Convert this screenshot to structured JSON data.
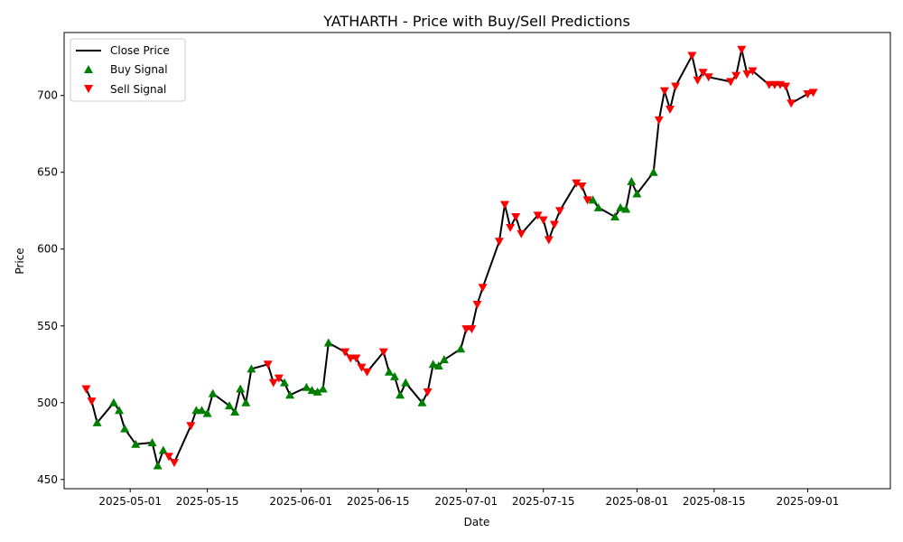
{
  "chart_data": {
    "type": "line",
    "title": "YATHARTH - Price with Buy/Sell Predictions",
    "xlabel": "Date",
    "ylabel": "Price",
    "xlim": [
      "2025-04-19",
      "2025-09-16"
    ],
    "ylim": [
      444,
      741
    ],
    "x_ticks": [
      "2025-05-01",
      "2025-05-15",
      "2025-06-01",
      "2025-06-15",
      "2025-07-01",
      "2025-07-15",
      "2025-08-01",
      "2025-08-15",
      "2025-09-01"
    ],
    "y_ticks": [
      450,
      500,
      550,
      600,
      650,
      700
    ],
    "legend_position": "upper left",
    "grid": false,
    "legend": [
      {
        "label": "Close Price",
        "marker": "line",
        "color": "#000000"
      },
      {
        "label": "Buy Signal",
        "marker": "triangle-up",
        "color": "#008000"
      },
      {
        "label": "Sell Signal",
        "marker": "triangle-down",
        "color": "#ff0000"
      }
    ],
    "series": [
      {
        "name": "Close Price",
        "color": "#000000",
        "points": [
          [
            "2025-04-23",
            509
          ],
          [
            "2025-04-24",
            501
          ],
          [
            "2025-04-25",
            487
          ],
          [
            "2025-04-28",
            500
          ],
          [
            "2025-04-29",
            495
          ],
          [
            "2025-04-30",
            483
          ],
          [
            "2025-05-02",
            473
          ],
          [
            "2025-05-05",
            474
          ],
          [
            "2025-05-06",
            459
          ],
          [
            "2025-05-07",
            469
          ],
          [
            "2025-05-08",
            465
          ],
          [
            "2025-05-09",
            461
          ],
          [
            "2025-05-12",
            485
          ],
          [
            "2025-05-13",
            495
          ],
          [
            "2025-05-14",
            495
          ],
          [
            "2025-05-15",
            493
          ],
          [
            "2025-05-16",
            506
          ],
          [
            "2025-05-19",
            498
          ],
          [
            "2025-05-20",
            494
          ],
          [
            "2025-05-21",
            509
          ],
          [
            "2025-05-22",
            500
          ],
          [
            "2025-05-23",
            522
          ],
          [
            "2025-05-26",
            525
          ],
          [
            "2025-05-27",
            513
          ],
          [
            "2025-05-28",
            516
          ],
          [
            "2025-05-29",
            513
          ],
          [
            "2025-05-30",
            505
          ],
          [
            "2025-06-02",
            510
          ],
          [
            "2025-06-03",
            508
          ],
          [
            "2025-06-04",
            507
          ],
          [
            "2025-06-05",
            509
          ],
          [
            "2025-06-06",
            539
          ],
          [
            "2025-06-09",
            533
          ],
          [
            "2025-06-10",
            529
          ],
          [
            "2025-06-11",
            529
          ],
          [
            "2025-06-12",
            523
          ],
          [
            "2025-06-13",
            520
          ],
          [
            "2025-06-16",
            533
          ],
          [
            "2025-06-17",
            520
          ],
          [
            "2025-06-18",
            517
          ],
          [
            "2025-06-19",
            505
          ],
          [
            "2025-06-20",
            513
          ],
          [
            "2025-06-23",
            500
          ],
          [
            "2025-06-24",
            507
          ],
          [
            "2025-06-25",
            525
          ],
          [
            "2025-06-26",
            524
          ],
          [
            "2025-06-27",
            528
          ],
          [
            "2025-06-30",
            535
          ],
          [
            "2025-07-01",
            548
          ],
          [
            "2025-07-02",
            548
          ],
          [
            "2025-07-03",
            564
          ],
          [
            "2025-07-04",
            575
          ],
          [
            "2025-07-07",
            605
          ],
          [
            "2025-07-08",
            629
          ],
          [
            "2025-07-09",
            614
          ],
          [
            "2025-07-10",
            621
          ],
          [
            "2025-07-11",
            610
          ],
          [
            "2025-07-14",
            622
          ],
          [
            "2025-07-15",
            619
          ],
          [
            "2025-07-16",
            606
          ],
          [
            "2025-07-17",
            616
          ],
          [
            "2025-07-18",
            625
          ],
          [
            "2025-07-21",
            643
          ],
          [
            "2025-07-22",
            641
          ],
          [
            "2025-07-23",
            632
          ],
          [
            "2025-07-24",
            632
          ],
          [
            "2025-07-25",
            627
          ],
          [
            "2025-07-28",
            621
          ],
          [
            "2025-07-29",
            627
          ],
          [
            "2025-07-30",
            626
          ],
          [
            "2025-07-31",
            644
          ],
          [
            "2025-08-01",
            636
          ],
          [
            "2025-08-04",
            650
          ],
          [
            "2025-08-05",
            684
          ],
          [
            "2025-08-06",
            703
          ],
          [
            "2025-08-07",
            691
          ],
          [
            "2025-08-08",
            706
          ],
          [
            "2025-08-11",
            726
          ],
          [
            "2025-08-12",
            710
          ],
          [
            "2025-08-13",
            715
          ],
          [
            "2025-08-14",
            712
          ],
          [
            "2025-08-18",
            709
          ],
          [
            "2025-08-19",
            713
          ],
          [
            "2025-08-20",
            730
          ],
          [
            "2025-08-21",
            714
          ],
          [
            "2025-08-22",
            716
          ],
          [
            "2025-08-25",
            707
          ],
          [
            "2025-08-26",
            707
          ],
          [
            "2025-08-27",
            707
          ],
          [
            "2025-08-28",
            706
          ],
          [
            "2025-08-29",
            695
          ],
          [
            "2025-09-01",
            701
          ],
          [
            "2025-09-02",
            702
          ]
        ]
      },
      {
        "name": "Buy Signal",
        "color": "#008000",
        "points": [
          [
            "2025-04-25",
            487
          ],
          [
            "2025-04-28",
            500
          ],
          [
            "2025-04-29",
            495
          ],
          [
            "2025-04-30",
            483
          ],
          [
            "2025-05-02",
            473
          ],
          [
            "2025-05-05",
            474
          ],
          [
            "2025-05-06",
            459
          ],
          [
            "2025-05-07",
            469
          ],
          [
            "2025-05-13",
            495
          ],
          [
            "2025-05-14",
            495
          ],
          [
            "2025-05-15",
            493
          ],
          [
            "2025-05-16",
            506
          ],
          [
            "2025-05-19",
            498
          ],
          [
            "2025-05-20",
            494
          ],
          [
            "2025-05-21",
            509
          ],
          [
            "2025-05-22",
            500
          ],
          [
            "2025-05-23",
            522
          ],
          [
            "2025-05-29",
            513
          ],
          [
            "2025-05-30",
            505
          ],
          [
            "2025-06-02",
            510
          ],
          [
            "2025-06-03",
            508
          ],
          [
            "2025-06-04",
            507
          ],
          [
            "2025-06-05",
            509
          ],
          [
            "2025-06-06",
            539
          ],
          [
            "2025-06-17",
            520
          ],
          [
            "2025-06-18",
            517
          ],
          [
            "2025-06-19",
            505
          ],
          [
            "2025-06-20",
            513
          ],
          [
            "2025-06-23",
            500
          ],
          [
            "2025-06-25",
            525
          ],
          [
            "2025-06-26",
            524
          ],
          [
            "2025-06-27",
            528
          ],
          [
            "2025-06-30",
            535
          ],
          [
            "2025-07-24",
            632
          ],
          [
            "2025-07-25",
            627
          ],
          [
            "2025-07-28",
            621
          ],
          [
            "2025-07-29",
            627
          ],
          [
            "2025-07-30",
            626
          ],
          [
            "2025-07-31",
            644
          ],
          [
            "2025-08-01",
            636
          ],
          [
            "2025-08-04",
            650
          ]
        ]
      },
      {
        "name": "Sell Signal",
        "color": "#ff0000",
        "points": [
          [
            "2025-04-23",
            509
          ],
          [
            "2025-04-24",
            501
          ],
          [
            "2025-05-08",
            465
          ],
          [
            "2025-05-09",
            461
          ],
          [
            "2025-05-12",
            485
          ],
          [
            "2025-05-26",
            525
          ],
          [
            "2025-05-27",
            513
          ],
          [
            "2025-05-28",
            516
          ],
          [
            "2025-06-09",
            533
          ],
          [
            "2025-06-10",
            529
          ],
          [
            "2025-06-11",
            529
          ],
          [
            "2025-06-12",
            523
          ],
          [
            "2025-06-13",
            520
          ],
          [
            "2025-06-16",
            533
          ],
          [
            "2025-06-24",
            507
          ],
          [
            "2025-07-01",
            548
          ],
          [
            "2025-07-02",
            548
          ],
          [
            "2025-07-03",
            564
          ],
          [
            "2025-07-04",
            575
          ],
          [
            "2025-07-07",
            605
          ],
          [
            "2025-07-08",
            629
          ],
          [
            "2025-07-09",
            614
          ],
          [
            "2025-07-10",
            621
          ],
          [
            "2025-07-11",
            610
          ],
          [
            "2025-07-14",
            622
          ],
          [
            "2025-07-15",
            619
          ],
          [
            "2025-07-16",
            606
          ],
          [
            "2025-07-17",
            616
          ],
          [
            "2025-07-18",
            625
          ],
          [
            "2025-07-21",
            643
          ],
          [
            "2025-07-22",
            641
          ],
          [
            "2025-07-23",
            632
          ],
          [
            "2025-08-05",
            684
          ],
          [
            "2025-08-06",
            703
          ],
          [
            "2025-08-07",
            691
          ],
          [
            "2025-08-08",
            706
          ],
          [
            "2025-08-11",
            726
          ],
          [
            "2025-08-12",
            710
          ],
          [
            "2025-08-13",
            715
          ],
          [
            "2025-08-14",
            712
          ],
          [
            "2025-08-18",
            709
          ],
          [
            "2025-08-19",
            713
          ],
          [
            "2025-08-20",
            730
          ],
          [
            "2025-08-21",
            714
          ],
          [
            "2025-08-22",
            716
          ],
          [
            "2025-08-25",
            707
          ],
          [
            "2025-08-26",
            707
          ],
          [
            "2025-08-27",
            707
          ],
          [
            "2025-08-28",
            706
          ],
          [
            "2025-08-29",
            695
          ],
          [
            "2025-09-01",
            701
          ],
          [
            "2025-09-02",
            702
          ]
        ]
      }
    ]
  }
}
